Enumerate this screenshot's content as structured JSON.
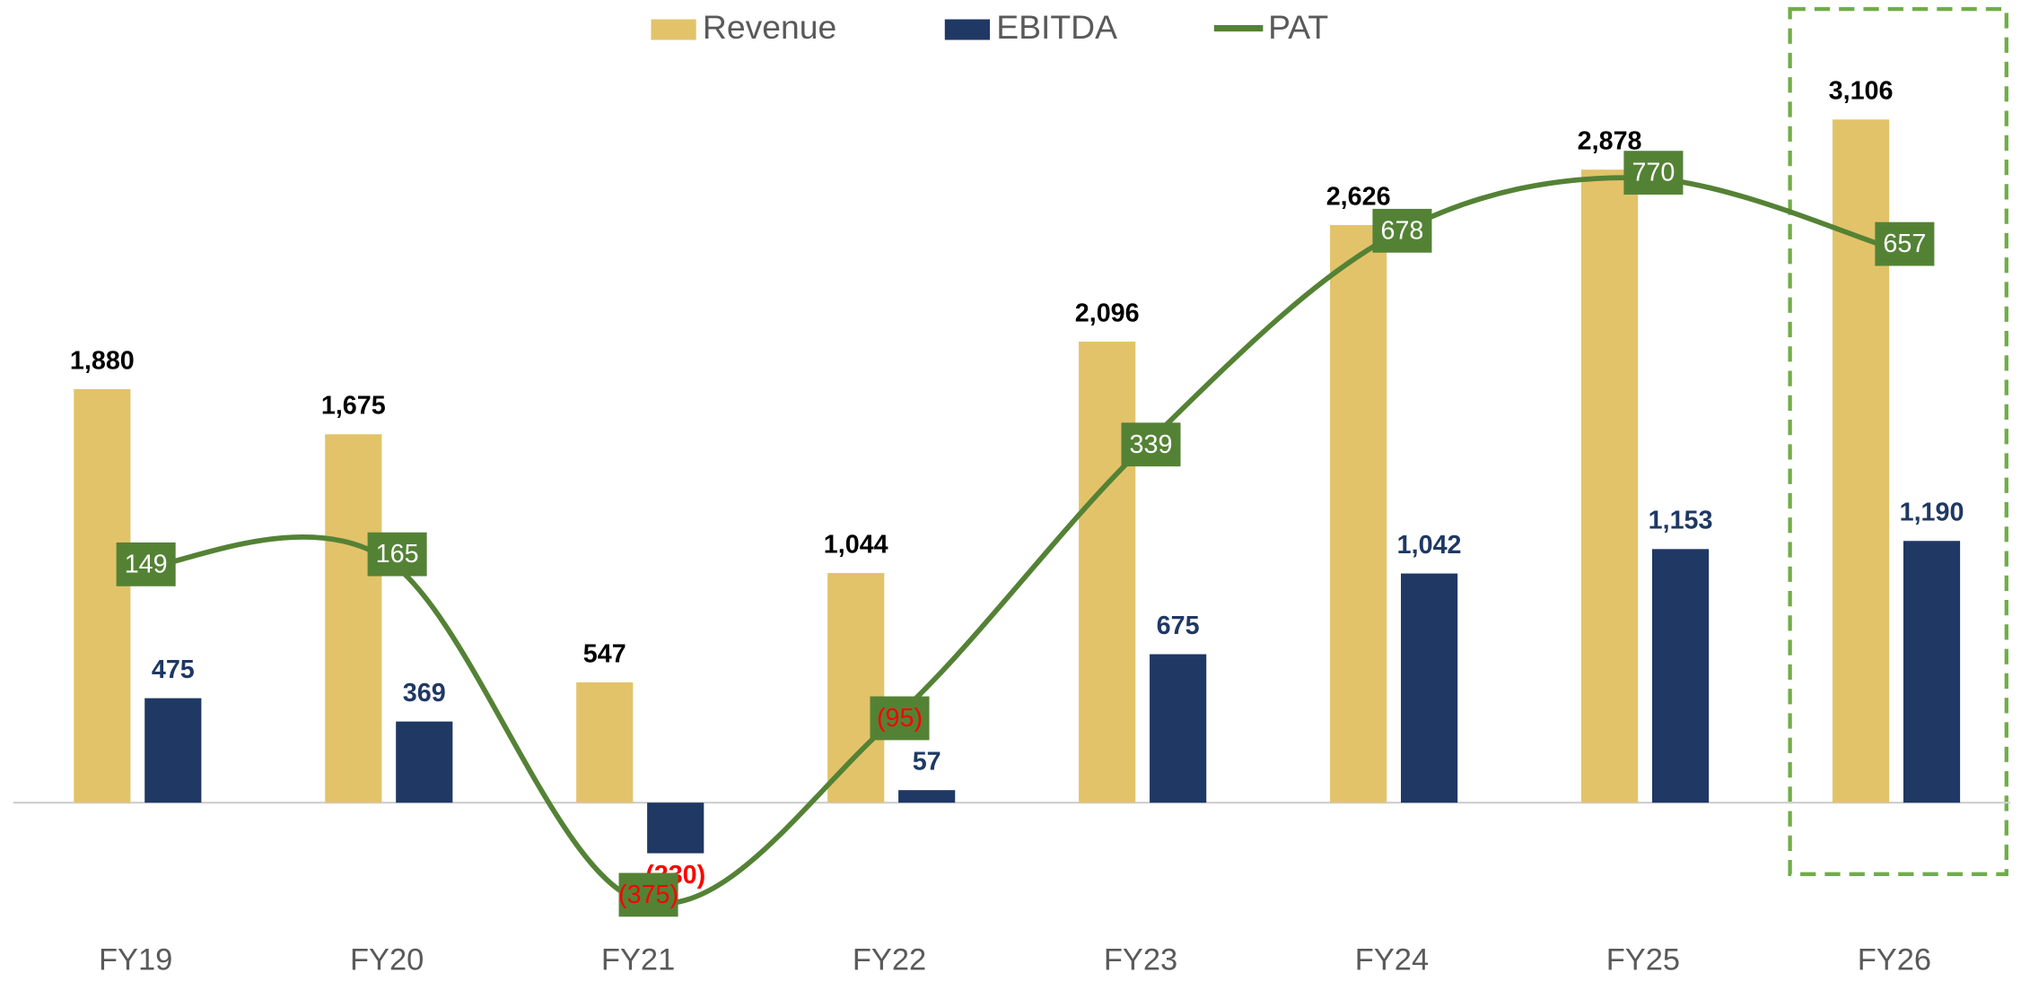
{
  "chart_data": {
    "type": "bar_line",
    "categories": [
      "FY19",
      "FY20",
      "FY21",
      "FY22",
      "FY23",
      "FY24",
      "FY25",
      "FY26"
    ],
    "series": [
      {
        "name": "Revenue",
        "color": "#E2C36A",
        "type": "bar",
        "values": [
          1880,
          1675,
          547,
          1044,
          2096,
          2626,
          2878,
          3106
        ],
        "value_labels": [
          "1,880",
          "1,675",
          "547",
          "1,044",
          "2,096",
          "2,626",
          "2,878",
          "3,106"
        ]
      },
      {
        "name": "EBITDA",
        "color": "#1F3864",
        "type": "bar",
        "values": [
          475,
          369,
          -230,
          57,
          675,
          1042,
          1153,
          1190
        ],
        "value_labels": [
          "475",
          "369",
          "(230)",
          "57",
          "675",
          "1,042",
          "1,153",
          "1,190"
        ]
      },
      {
        "name": "PAT",
        "color": "#548235",
        "type": "line",
        "axis": "y2",
        "values": [
          149,
          165,
          -375,
          -95,
          339,
          678,
          770,
          657
        ],
        "value_labels": [
          "149",
          "165",
          "(375)",
          "(95)",
          "339",
          "678",
          "770",
          "657"
        ]
      }
    ],
    "ylim": [
      -600,
      3500
    ],
    "y2lim": [
      -430,
      1000
    ]
  }
}
